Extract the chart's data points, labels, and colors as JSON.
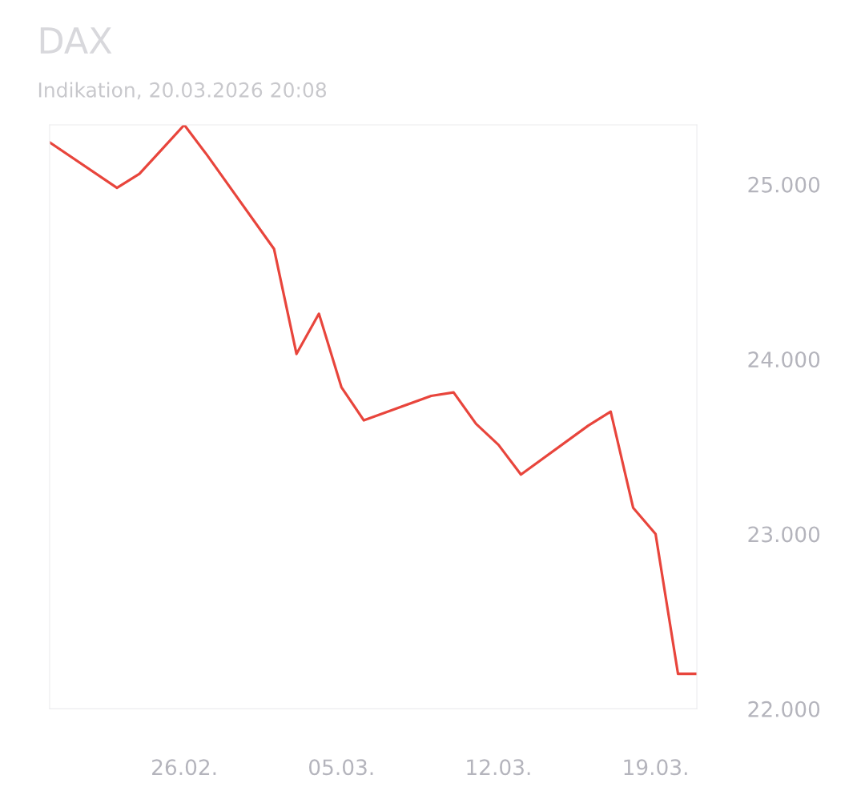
{
  "chart_data": {
    "type": "line",
    "title": "DAX",
    "subtitle": "Indikation, 20.03.2026 20:08",
    "x": [
      "2026-02-20",
      "2026-02-23",
      "2026-02-24",
      "2026-02-25",
      "2026-02-26",
      "2026-02-27",
      "2026-03-02",
      "2026-03-03",
      "2026-03-04",
      "2026-03-05",
      "2026-03-06",
      "2026-03-09",
      "2026-03-10",
      "2026-03-11",
      "2026-03-12",
      "2026-03-13",
      "2026-03-16",
      "2026-03-17",
      "2026-03-18",
      "2026-03-19",
      "2026-03-20",
      "2026-03-20T20:08"
    ],
    "series": [
      {
        "color": "#e8453c",
        "values": [
          25240,
          24980,
          25060,
          25200,
          25340,
          25170,
          24630,
          24030,
          24260,
          23840,
          23650,
          23790,
          23810,
          23630,
          23510,
          23340,
          23620,
          23700,
          23150,
          23000,
          22200,
          22200
        ]
      }
    ],
    "xlim": [
      "2026-02-20",
      "2026-03-20T20:08"
    ],
    "ylim": [
      22000,
      25340
    ],
    "xticks": [
      {
        "value": "2026-02-26",
        "label": "26.02."
      },
      {
        "value": "2026-03-05",
        "label": "05.03."
      },
      {
        "value": "2026-03-12",
        "label": "12.03."
      },
      {
        "value": "2026-03-19",
        "label": "19.03."
      }
    ],
    "yticks": [
      {
        "value": 22000,
        "label": "22.000"
      },
      {
        "value": 23000,
        "label": "23.000"
      },
      {
        "value": 24000,
        "label": "24.000"
      },
      {
        "value": 25000,
        "label": "25.000"
      }
    ],
    "grid": false,
    "legend": false,
    "marker": "none",
    "line_style": "solid"
  }
}
